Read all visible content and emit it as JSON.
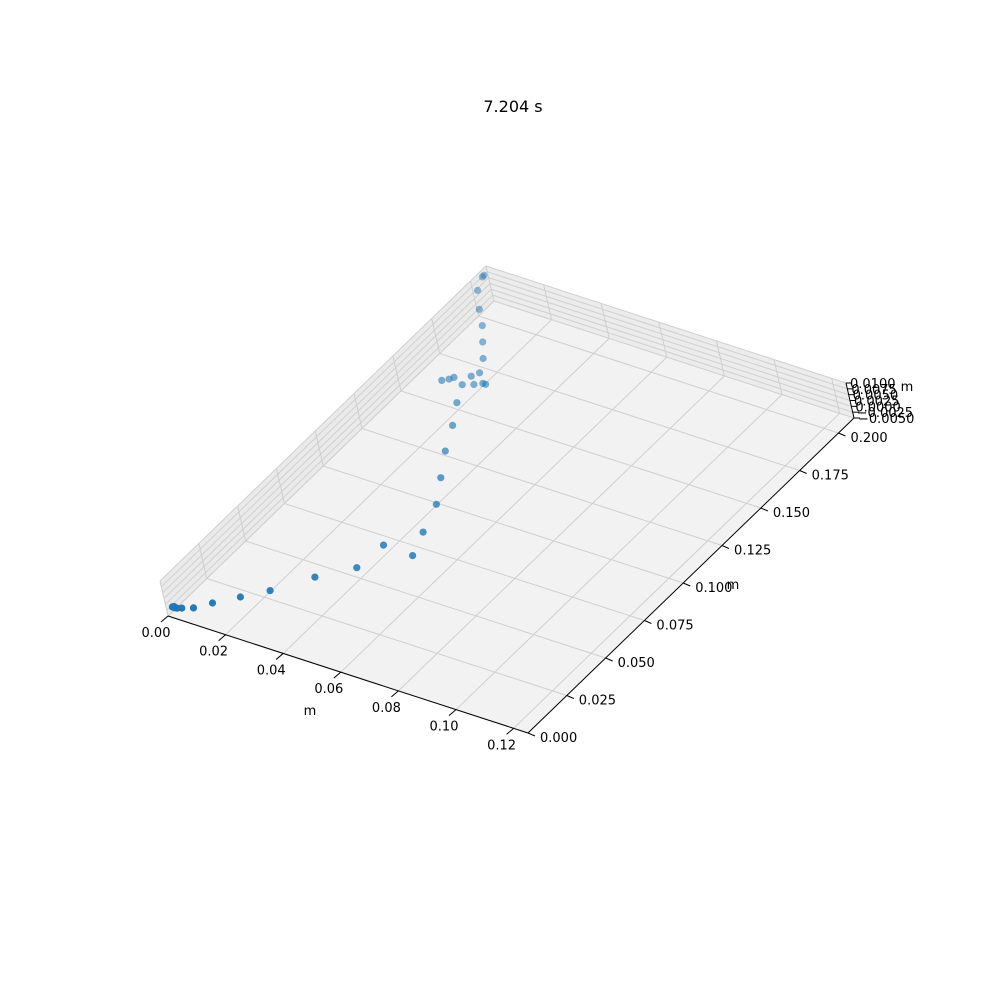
{
  "chart_data": {
    "type": "scatter",
    "projection": "3d",
    "title": "7.204 s",
    "xlabel": "m",
    "ylabel": "m",
    "zlabel": "m",
    "xlim": [
      0.0,
      0.125
    ],
    "ylim": [
      0.0,
      0.21
    ],
    "zlim": [
      -0.005,
      0.01
    ],
    "xticks": [
      "0.00",
      "0.02",
      "0.04",
      "0.06",
      "0.08",
      "0.10",
      "0.12"
    ],
    "yticks": [
      "0.000",
      "0.025",
      "0.050",
      "0.075",
      "0.100",
      "0.125",
      "0.150",
      "0.175",
      "0.200"
    ],
    "zticks": [
      "−0.0050",
      "−0.0025",
      "0.0000",
      "0.0025",
      "0.0050",
      "0.0075",
      "0.0100"
    ],
    "grid": true,
    "color": "#1f77b4",
    "series": [
      {
        "points": [
          {
            "x": 0.002,
            "y": 0.205,
            "z": 0.01
          },
          {
            "x": 0.002,
            "y": 0.204,
            "z": 0.01
          },
          {
            "x": 0.004,
            "y": 0.197,
            "z": 0.0095
          },
          {
            "x": 0.008,
            "y": 0.19,
            "z": 0.0075
          },
          {
            "x": 0.012,
            "y": 0.184,
            "z": 0.006
          },
          {
            "x": 0.015,
            "y": 0.178,
            "z": 0.004
          },
          {
            "x": 0.018,
            "y": 0.172,
            "z": 0.002
          },
          {
            "x": 0.019,
            "y": 0.167,
            "z": -0.0005
          },
          {
            "x": 0.017,
            "y": 0.165,
            "z": -0.0015
          },
          {
            "x": 0.014,
            "y": 0.16,
            "z": 0.0
          },
          {
            "x": 0.012,
            "y": 0.156,
            "z": 0.0005
          },
          {
            "x": 0.012,
            "y": 0.16,
            "z": -0.0015
          },
          {
            "x": 0.015,
            "y": 0.162,
            "z": -0.004
          },
          {
            "x": 0.018,
            "y": 0.164,
            "z": -0.004
          },
          {
            "x": 0.02,
            "y": 0.166,
            "z": -0.004
          },
          {
            "x": 0.021,
            "y": 0.166,
            "z": -0.004
          },
          {
            "x": 0.02,
            "y": 0.15,
            "z": -0.002
          },
          {
            "x": 0.025,
            "y": 0.138,
            "z": -0.002
          },
          {
            "x": 0.03,
            "y": 0.124,
            "z": -0.002
          },
          {
            "x": 0.036,
            "y": 0.11,
            "z": -0.002
          },
          {
            "x": 0.042,
            "y": 0.096,
            "z": -0.002
          },
          {
            "x": 0.046,
            "y": 0.08,
            "z": -0.002
          },
          {
            "x": 0.05,
            "y": 0.066,
            "z": -0.0015
          },
          {
            "x": 0.04,
            "y": 0.066,
            "z": -0.001
          },
          {
            "x": 0.038,
            "y": 0.052,
            "z": -0.0025
          },
          {
            "x": 0.03,
            "y": 0.04,
            "z": -0.002
          },
          {
            "x": 0.022,
            "y": 0.026,
            "z": -0.002
          },
          {
            "x": 0.016,
            "y": 0.018,
            "z": -0.002
          },
          {
            "x": 0.01,
            "y": 0.011,
            "z": -0.0025
          },
          {
            "x": 0.006,
            "y": 0.006,
            "z": -0.003
          },
          {
            "x": 0.003,
            "y": 0.004,
            "z": -0.003
          },
          {
            "x": 0.002,
            "y": 0.003,
            "z": -0.0028
          },
          {
            "x": 0.001,
            "y": 0.003,
            "z": -0.003
          },
          {
            "x": 0.001,
            "y": 0.003,
            "z": -0.0025
          },
          {
            "x": 0.001,
            "y": 0.002,
            "z": -0.002
          }
        ]
      }
    ]
  }
}
